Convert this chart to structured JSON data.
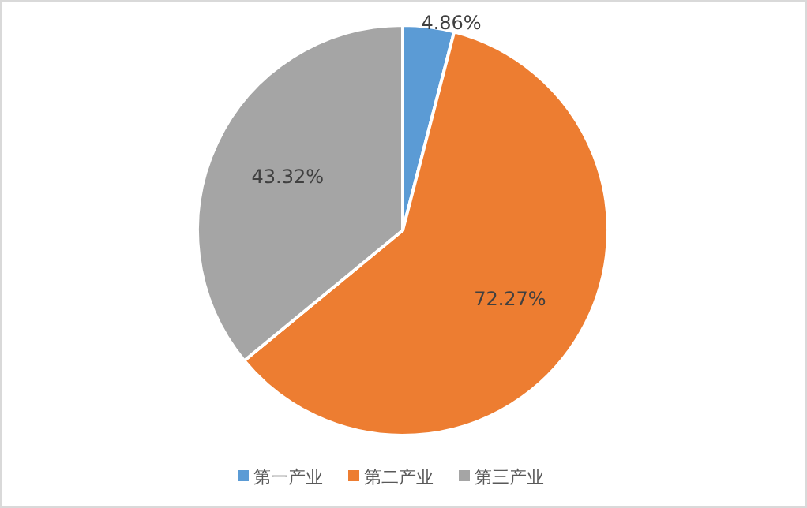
{
  "chart_data": {
    "type": "pie",
    "categories": [
      "第一产业",
      "第二产业",
      "第三产业"
    ],
    "values": [
      4.86,
      72.27,
      43.32
    ],
    "colors": [
      "#5b9bd5",
      "#ed7d31",
      "#a5a5a5"
    ],
    "value_labels": [
      "4.86%",
      "72.27%",
      "43.32%"
    ],
    "legend": "bottom"
  }
}
